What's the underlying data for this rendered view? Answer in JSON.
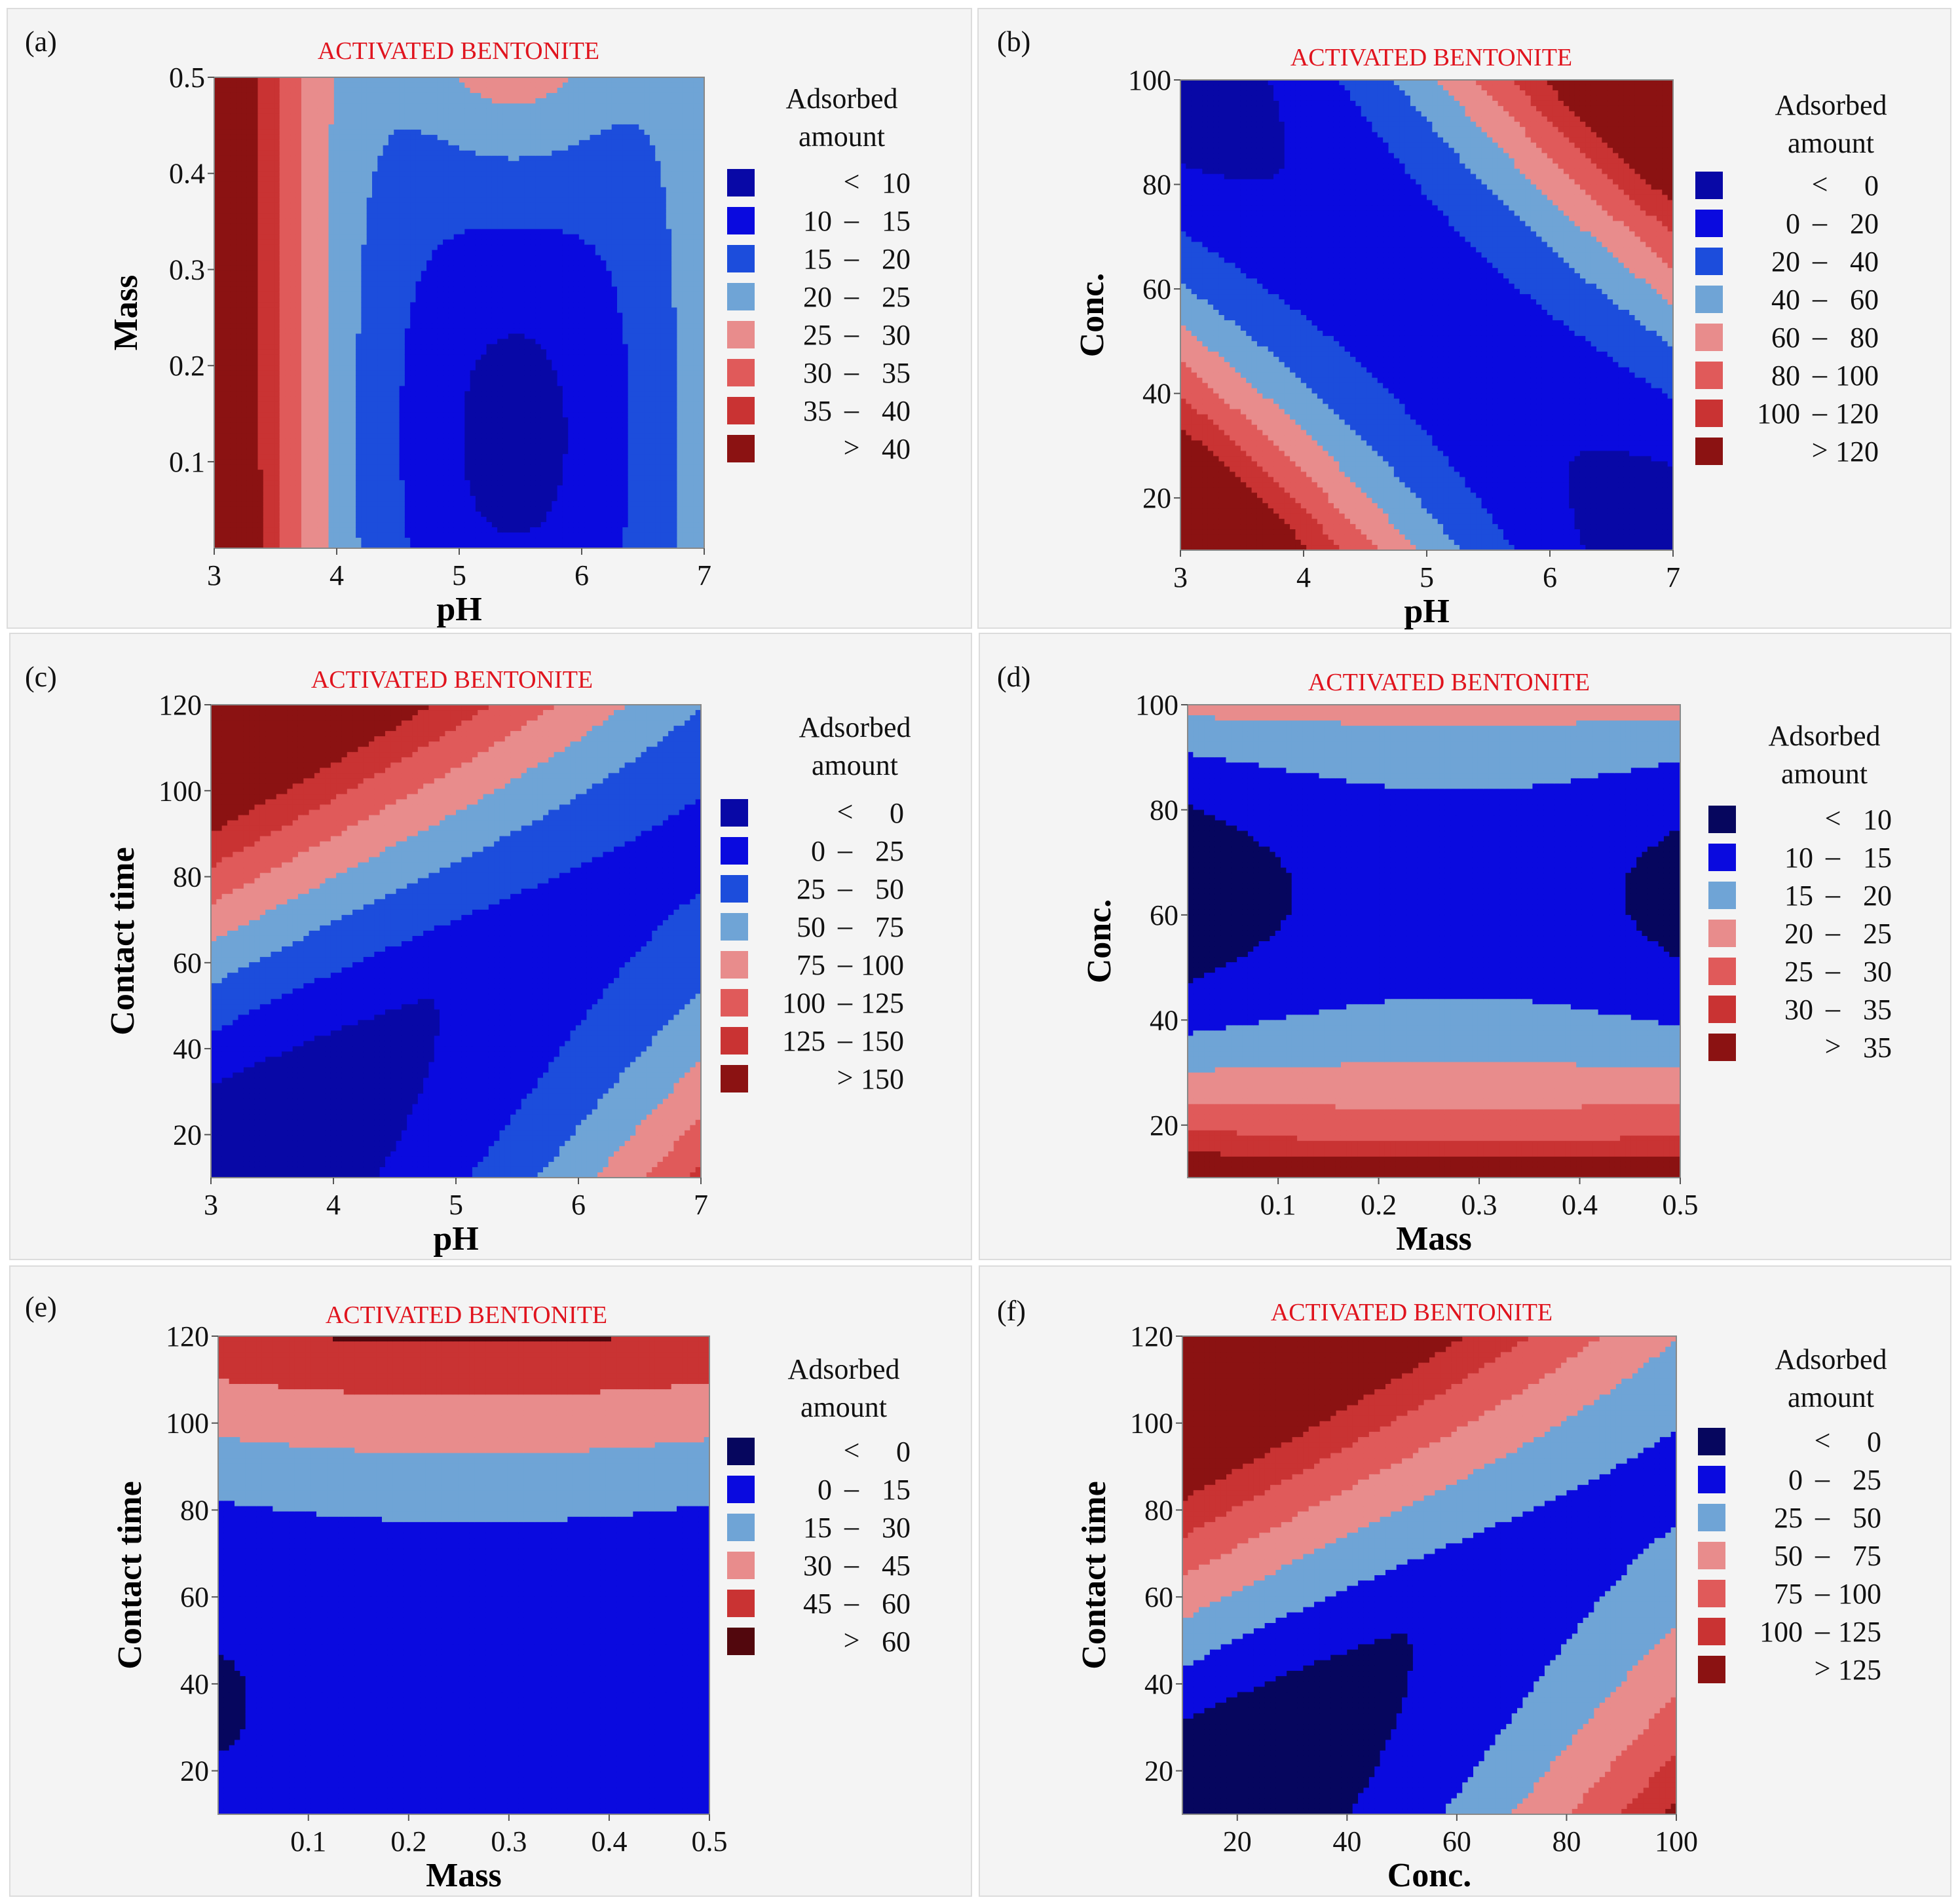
{
  "figure": {
    "common_title": "ACTIVATED BENTONITE",
    "legend_header_line1": "Adsorbed",
    "legend_header_line2": "amount"
  },
  "chart_data": [
    {
      "panel": "(a)",
      "type": "heatmap",
      "subtype": "filled-contour",
      "title": "ACTIVATED BENTONITE",
      "xlabel": "pH",
      "ylabel": "Mass",
      "xlim": [
        3,
        7
      ],
      "ylim": [
        0.01,
        0.5
      ],
      "xticks": [
        "3",
        "4",
        "5",
        "6",
        "7"
      ],
      "xtick_values": [
        3,
        4,
        5,
        6,
        7
      ],
      "yticks": [
        "0.1",
        "0.2",
        "0.3",
        "0.4",
        "0.5"
      ],
      "ytick_values": [
        0.1,
        0.2,
        0.3,
        0.4,
        0.5
      ],
      "legend_title": "Adsorbed amount",
      "legend": [
        {
          "label_lo": "",
          "op": "<",
          "label_hi": "10",
          "color": "#0808a6"
        },
        {
          "label_lo": "10",
          "op": "–",
          "label_hi": "15",
          "color": "#0a0adf"
        },
        {
          "label_lo": "15",
          "op": "–",
          "label_hi": "20",
          "color": "#1c4ddc"
        },
        {
          "label_lo": "20",
          "op": "–",
          "label_hi": "25",
          "color": "#6fa4d6"
        },
        {
          "label_lo": "25",
          "op": "–",
          "label_hi": "30",
          "color": "#e88c8c"
        },
        {
          "label_lo": "30",
          "op": "–",
          "label_hi": "35",
          "color": "#e05a5a"
        },
        {
          "label_lo": "35",
          "op": "–",
          "label_hi": "40",
          "color": "#c93333"
        },
        {
          "label_lo": "",
          "op": ">",
          "label_hi": "40",
          "color": "#8b1212"
        }
      ],
      "levels": [
        10,
        15,
        20,
        25,
        30,
        35,
        40
      ],
      "description": "Vertical bands; response highest (>40) at pH 3, minimum (<10) near pH 5.3-5.6 at mass extremes (top and bottom lobes), rising again toward pH 7 (20-25)."
    },
    {
      "panel": "(b)",
      "type": "heatmap",
      "subtype": "filled-contour",
      "title": "ACTIVATED BENTONITE",
      "xlabel": "pH",
      "ylabel": "Conc.",
      "xlim": [
        3,
        7
      ],
      "ylim": [
        10,
        100
      ],
      "xticks": [
        "3",
        "4",
        "5",
        "6",
        "7"
      ],
      "xtick_values": [
        3,
        4,
        5,
        6,
        7
      ],
      "yticks": [
        "20",
        "40",
        "60",
        "80",
        "100"
      ],
      "ytick_values": [
        20,
        40,
        60,
        80,
        100
      ],
      "legend_title": "Adsorbed amount",
      "legend": [
        {
          "label_lo": "",
          "op": "<",
          "label_hi": "0",
          "color": "#0808a6"
        },
        {
          "label_lo": "0",
          "op": "–",
          "label_hi": "20",
          "color": "#0a0adf"
        },
        {
          "label_lo": "20",
          "op": "–",
          "label_hi": "40",
          "color": "#1c4ddc"
        },
        {
          "label_lo": "40",
          "op": "–",
          "label_hi": "60",
          "color": "#6fa4d6"
        },
        {
          "label_lo": "60",
          "op": "–",
          "label_hi": "80",
          "color": "#e88c8c"
        },
        {
          "label_lo": "80",
          "op": "–",
          "label_hi": "100",
          "color": "#e05a5a"
        },
        {
          "label_lo": "100",
          "op": "–",
          "label_hi": "120",
          "color": "#c93333"
        },
        {
          "label_lo": "",
          "op": ">",
          "label_hi": "120",
          "color": "#8b1212"
        }
      ],
      "levels": [
        0,
        20,
        40,
        60,
        80,
        100,
        120
      ],
      "description": "Diagonal saddle; high (>120) at low pH & low conc. corner, high (80-100) at pH 7 & conc. 100, minimum (<0) at top-left and bottom-right corners."
    },
    {
      "panel": "(c)",
      "type": "heatmap",
      "subtype": "filled-contour",
      "title": "ACTIVATED BENTONITE",
      "xlabel": "pH",
      "ylabel": "Contact time",
      "xlim": [
        3,
        7
      ],
      "ylim": [
        10,
        120
      ],
      "xticks": [
        "3",
        "4",
        "5",
        "6",
        "7"
      ],
      "xtick_values": [
        3,
        4,
        5,
        6,
        7
      ],
      "yticks": [
        "20",
        "40",
        "60",
        "80",
        "100",
        "120"
      ],
      "ytick_values": [
        20,
        40,
        60,
        80,
        100,
        120
      ],
      "legend_title": "Adsorbed amount",
      "legend": [
        {
          "label_lo": "",
          "op": "<",
          "label_hi": "0",
          "color": "#0808a6"
        },
        {
          "label_lo": "0",
          "op": "–",
          "label_hi": "25",
          "color": "#0a0adf"
        },
        {
          "label_lo": "25",
          "op": "–",
          "label_hi": "50",
          "color": "#1c4ddc"
        },
        {
          "label_lo": "50",
          "op": "–",
          "label_hi": "75",
          "color": "#6fa4d6"
        },
        {
          "label_lo": "75",
          "op": "–",
          "label_hi": "100",
          "color": "#e88c8c"
        },
        {
          "label_lo": "100",
          "op": "–",
          "label_hi": "125",
          "color": "#e05a5a"
        },
        {
          "label_lo": "125",
          "op": "–",
          "label_hi": "150",
          "color": "#c93333"
        },
        {
          "label_lo": "",
          "op": ">",
          "label_hi": "150",
          "color": "#8b1212"
        }
      ],
      "levels": [
        0,
        25,
        50,
        75,
        100,
        125,
        150
      ],
      "description": "Diagonal bands rising to top-left (125-150 at pH 3, time 120); minimum (<0) lobe at low pH and low time; 50-75 at pH 7 low time."
    },
    {
      "panel": "(d)",
      "type": "heatmap",
      "subtype": "filled-contour",
      "title": "ACTIVATED BENTONITE",
      "xlabel": "Mass",
      "ylabel": "Conc.",
      "xlim": [
        0.01,
        0.5
      ],
      "ylim": [
        10,
        100
      ],
      "xticks": [
        "0.1",
        "0.2",
        "0.3",
        "0.4",
        "0.5"
      ],
      "xtick_values": [
        0.1,
        0.2,
        0.3,
        0.4,
        0.5
      ],
      "yticks": [
        "20",
        "40",
        "60",
        "80",
        "100"
      ],
      "ytick_values": [
        20,
        40,
        60,
        80,
        100
      ],
      "legend_title": "Adsorbed amount",
      "legend": [
        {
          "label_lo": "",
          "op": "<",
          "label_hi": "10",
          "color": "#06065e"
        },
        {
          "label_lo": "10",
          "op": "–",
          "label_hi": "15",
          "color": "#0a0adf"
        },
        {
          "label_lo": "15",
          "op": "–",
          "label_hi": "20",
          "color": "#6fa4d6"
        },
        {
          "label_lo": "20",
          "op": "–",
          "label_hi": "25",
          "color": "#e88c8c"
        },
        {
          "label_lo": "25",
          "op": "–",
          "label_hi": "30",
          "color": "#e05a5a"
        },
        {
          "label_lo": "30",
          "op": "–",
          "label_hi": "35",
          "color": "#c93333"
        },
        {
          "label_lo": "",
          "op": ">",
          "label_hi": "35",
          "color": "#8b1212"
        }
      ],
      "levels": [
        10,
        15,
        20,
        25,
        30,
        35
      ],
      "description": "Horizontal bands; high (>35) at low conc. near mass 0.3, minimum (<10) lobes at mass extremes around conc. 60-65, 20-25 near conc. 100."
    },
    {
      "panel": "(e)",
      "type": "heatmap",
      "subtype": "filled-contour",
      "title": "ACTIVATED BENTONITE",
      "xlabel": "Mass",
      "ylabel": "Contact time",
      "xlim": [
        0.01,
        0.5
      ],
      "ylim": [
        10,
        120
      ],
      "xticks": [
        "0.1",
        "0.2",
        "0.3",
        "0.4",
        "0.5"
      ],
      "xtick_values": [
        0.1,
        0.2,
        0.3,
        0.4,
        0.5
      ],
      "yticks": [
        "20",
        "40",
        "60",
        "80",
        "100",
        "120"
      ],
      "ytick_values": [
        20,
        40,
        60,
        80,
        100,
        120
      ],
      "legend_title": "Adsorbed amount",
      "legend": [
        {
          "label_lo": "",
          "op": "<",
          "label_hi": "0",
          "color": "#06065e"
        },
        {
          "label_lo": "0",
          "op": "–",
          "label_hi": "15",
          "color": "#0a0adf"
        },
        {
          "label_lo": "15",
          "op": "–",
          "label_hi": "30",
          "color": "#6fa4d6"
        },
        {
          "label_lo": "30",
          "op": "–",
          "label_hi": "45",
          "color": "#e88c8c"
        },
        {
          "label_lo": "45",
          "op": "–",
          "label_hi": "60",
          "color": "#c93333"
        },
        {
          "label_lo": "",
          "op": ">",
          "label_hi": "60",
          "color": "#52070d"
        }
      ],
      "levels": [
        0,
        15,
        30,
        45,
        60
      ],
      "description": "Horizontal bands; >60 at contact time ~112-120, decreasing downward; 0-15 below ~72; small <0 lobe at mass 0.01, time ~35."
    },
    {
      "panel": "(f)",
      "type": "heatmap",
      "subtype": "filled-contour",
      "title": "ACTIVATED BENTONITE",
      "xlabel": "Conc.",
      "ylabel": "Contact time",
      "xlim": [
        10,
        100
      ],
      "ylim": [
        10,
        120
      ],
      "xticks": [
        "20",
        "40",
        "60",
        "80",
        "100"
      ],
      "xtick_values": [
        20,
        40,
        60,
        80,
        100
      ],
      "yticks": [
        "20",
        "40",
        "60",
        "80",
        "100",
        "120"
      ],
      "ytick_values": [
        20,
        40,
        60,
        80,
        100,
        120
      ],
      "legend_title": "Adsorbed amount",
      "legend": [
        {
          "label_lo": "",
          "op": "<",
          "label_hi": "0",
          "color": "#06065e"
        },
        {
          "label_lo": "0",
          "op": "–",
          "label_hi": "25",
          "color": "#0a0adf"
        },
        {
          "label_lo": "25",
          "op": "–",
          "label_hi": "50",
          "color": "#6fa4d6"
        },
        {
          "label_lo": "50",
          "op": "–",
          "label_hi": "75",
          "color": "#e88c8c"
        },
        {
          "label_lo": "75",
          "op": "–",
          "label_hi": "100",
          "color": "#e05a5a"
        },
        {
          "label_lo": "100",
          "op": "–",
          "label_hi": "125",
          "color": "#c93333"
        },
        {
          "label_lo": "",
          "op": ">",
          "label_hi": "125",
          "color": "#8b1212"
        }
      ],
      "levels": [
        0,
        25,
        50,
        75,
        100,
        125
      ],
      "description": "Diagonal bands rising to top-left (>125 at conc. 10, time 120); minimum (<0) lobe at low conc. and low time; 50-75 at conc. 100 low time."
    }
  ]
}
